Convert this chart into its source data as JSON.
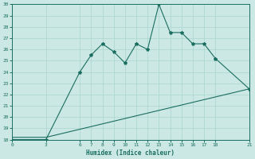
{
  "xlabel": "Humidex (Indice chaleur)",
  "bg_color": "#cce8e4",
  "line_color": "#1a6e60",
  "grid_color": "#b0d8d2",
  "ylim": [
    18,
    30
  ],
  "xlim": [
    0,
    21
  ],
  "yticks": [
    18,
    19,
    20,
    21,
    22,
    23,
    24,
    25,
    26,
    27,
    28,
    29,
    30
  ],
  "xticks": [
    0,
    3,
    6,
    7,
    8,
    9,
    10,
    11,
    12,
    13,
    14,
    15,
    16,
    17,
    18,
    21
  ],
  "line1_x": [
    0,
    3,
    6,
    7,
    8,
    9,
    10,
    11,
    12,
    13,
    14,
    15,
    16,
    17,
    18,
    21
  ],
  "line1_y": [
    18,
    18,
    24,
    25.5,
    26.5,
    25.8,
    24.8,
    26.5,
    26.0,
    30,
    27.5,
    27.5,
    26.5,
    26.5,
    25.2,
    22.5
  ],
  "line2_x": [
    0,
    3,
    21
  ],
  "line2_y": [
    18.2,
    18.2,
    22.5
  ]
}
